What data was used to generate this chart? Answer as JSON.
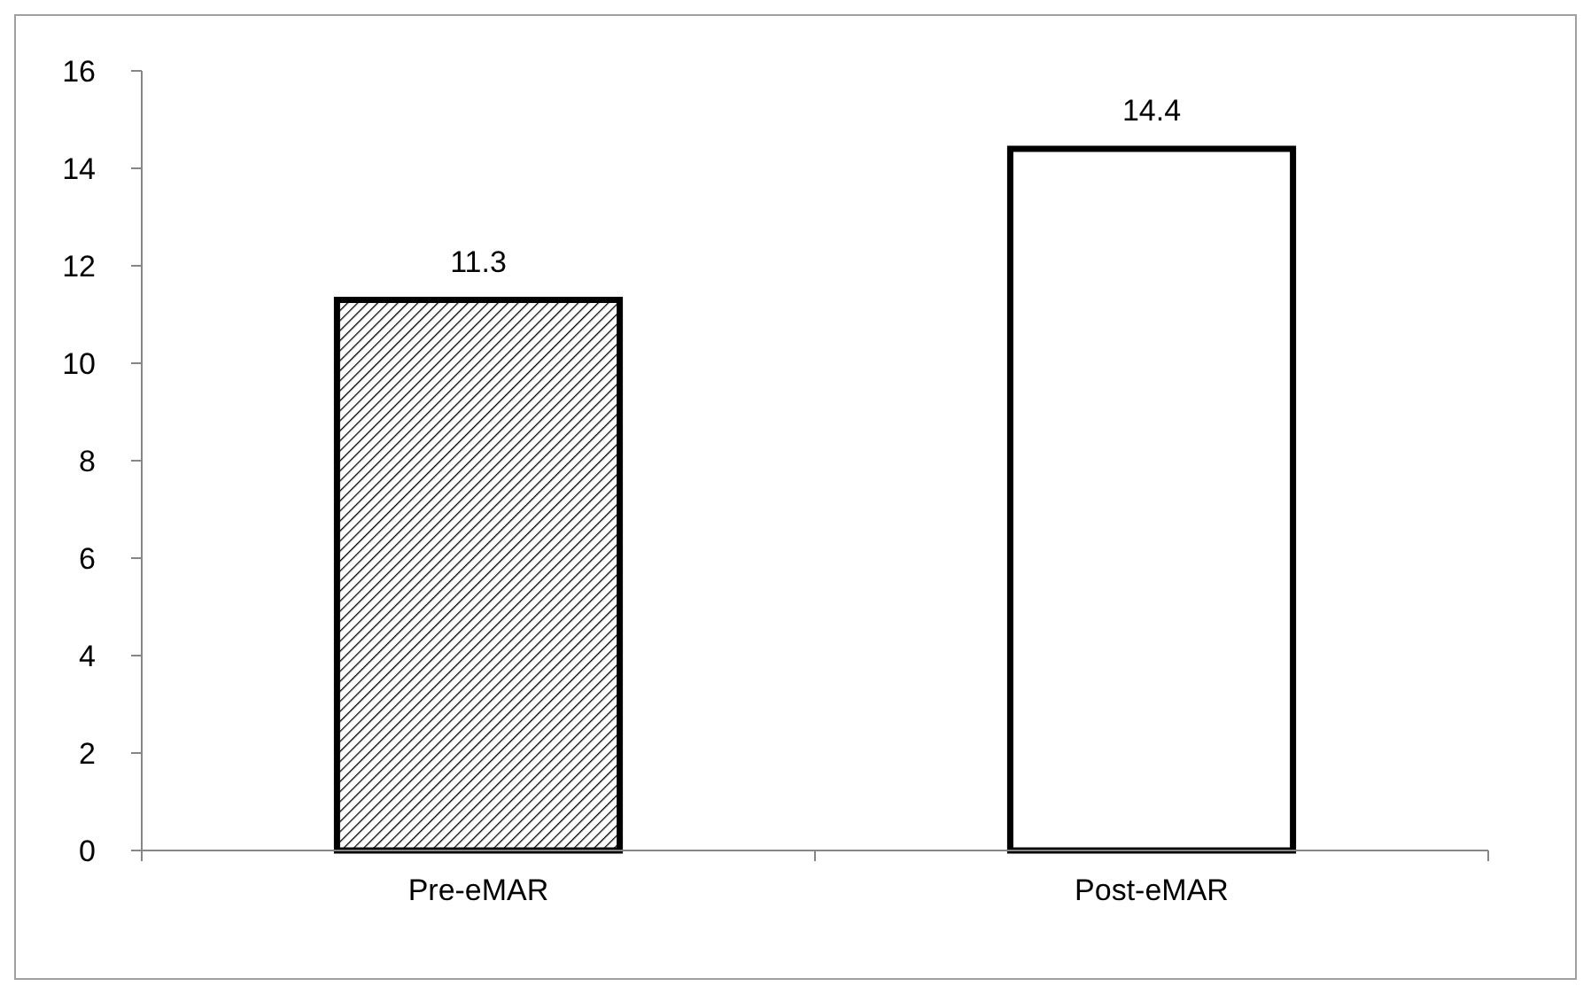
{
  "chart_data": {
    "type": "bar",
    "categories": [
      "Pre-eMAR",
      "Post-eMAR"
    ],
    "values": [
      11.3,
      14.4
    ],
    "colors": [
      "#000000",
      "#ffffff"
    ],
    "ylim": [
      0,
      16
    ],
    "yticks": [
      0,
      2,
      4,
      6,
      8,
      10,
      12,
      14,
      16
    ],
    "data_labels": true,
    "grid": false
  }
}
